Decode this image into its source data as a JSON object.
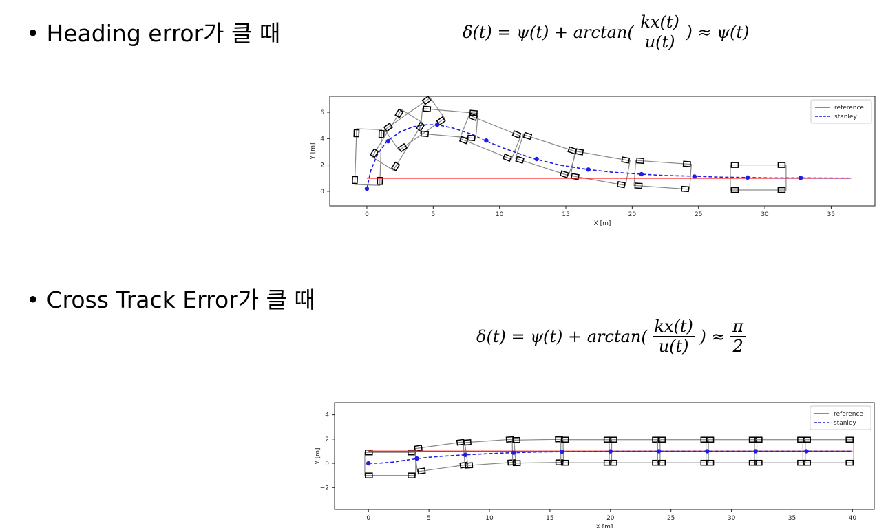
{
  "sections": [
    {
      "heading": "Heading error가 클 때",
      "formula": {
        "lhs": "δ(t) = ψ(t) + arctan(",
        "num": "kx(t)",
        "den": "u(t)",
        "rhs": ") ≈ ψ(t)"
      }
    },
    {
      "heading": "Cross Track Error가 클 때",
      "formula": {
        "lhs": "δ(t) = ψ(t) + arctan(",
        "num": "kx(t)",
        "den": "u(t)",
        "rhs_prefix": ") ≈",
        "rhs_num": "π",
        "rhs_den": "2"
      }
    }
  ],
  "chart_data": [
    {
      "type": "line",
      "xlabel": "X [m]",
      "ylabel": "Y [m]",
      "xlim": [
        -2.8,
        38.3
      ],
      "ylim": [
        -1.1,
        7.2
      ],
      "xticks": [
        "0",
        "5",
        "10",
        "15",
        "20",
        "25",
        "30",
        "35"
      ],
      "xtick_values": [
        0,
        5,
        10,
        15,
        20,
        25,
        30,
        35
      ],
      "yticks": [
        "0",
        "2",
        "4",
        "6"
      ],
      "ytick_values": [
        0,
        2,
        4,
        6
      ],
      "legend": {
        "position": "top-right",
        "entries": [
          "reference",
          "stanley"
        ]
      },
      "series": [
        {
          "name": "reference",
          "color": "#ff2020",
          "style": "solid",
          "x": [
            0,
            36.5
          ],
          "y": [
            1,
            1
          ]
        },
        {
          "name": "stanley",
          "color": "#1e1ee6",
          "style": "dashed",
          "x": [
            0,
            0.3,
            0.8,
            1.5,
            2.5,
            3.5,
            4.5,
            5.3,
            6.5,
            8,
            9,
            10.5,
            12.5,
            14.5,
            16.7,
            18.5,
            20.7,
            22.5,
            24.7,
            26.5,
            28.7,
            30.5,
            32.7,
            36.5
          ],
          "y": [
            0.2,
            1.6,
            2.8,
            3.8,
            4.5,
            4.9,
            5.05,
            5.05,
            4.8,
            4.3,
            3.8,
            3.2,
            2.5,
            2.0,
            1.65,
            1.45,
            1.3,
            1.2,
            1.15,
            1.08,
            1.05,
            1.02,
            1.02,
            1.0
          ]
        }
      ],
      "markers": {
        "x": [
          0,
          1.6,
          5.3,
          9.0,
          12.8,
          16.7,
          20.7,
          24.7,
          28.7,
          32.7
        ],
        "y": [
          0.2,
          3.8,
          5.05,
          3.85,
          2.45,
          1.65,
          1.3,
          1.12,
          1.05,
          1.02
        ]
      },
      "vehicle_outlines": [
        {
          "cx": 0.1,
          "cy": 2.6,
          "heading": 88
        },
        {
          "cx": 2.3,
          "cy": 3.9,
          "heading": 58
        },
        {
          "cx": 3.6,
          "cy": 5.1,
          "heading": 35
        },
        {
          "cx": 6.2,
          "cy": 5.15,
          "heading": -5
        },
        {
          "cx": 9.3,
          "cy": 4.1,
          "heading": -22
        },
        {
          "cx": 13.5,
          "cy": 2.75,
          "heading": -18
        },
        {
          "cx": 17.6,
          "cy": 1.75,
          "heading": -10
        },
        {
          "cx": 22.3,
          "cy": 1.25,
          "heading": -4
        },
        {
          "cx": 29.5,
          "cy": 1.05,
          "heading": 0
        }
      ]
    },
    {
      "type": "line",
      "xlabel": "X [m]",
      "ylabel": "Y [m]",
      "xlim": [
        -2.8,
        41.8
      ],
      "ylim": [
        -3.8,
        5.0
      ],
      "xticks": [
        "0",
        "5",
        "10",
        "15",
        "20",
        "25",
        "30",
        "35",
        "40"
      ],
      "xtick_values": [
        0,
        5,
        10,
        15,
        20,
        25,
        30,
        35,
        40
      ],
      "yticks": [
        "4",
        "2",
        "0",
        "−2"
      ],
      "ytick_values": [
        4,
        2,
        0,
        -2
      ],
      "legend": {
        "position": "top-right",
        "entries": [
          "reference",
          "stanley"
        ]
      },
      "series": [
        {
          "name": "reference",
          "color": "#ff2020",
          "style": "solid",
          "x": [
            0,
            40
          ],
          "y": [
            1,
            1
          ]
        },
        {
          "name": "stanley",
          "color": "#1e1ee6",
          "style": "dashed",
          "x": [
            0,
            1,
            2,
            3,
            4,
            5,
            6,
            8,
            10,
            12,
            14,
            16,
            20,
            24,
            28,
            32,
            36,
            40
          ],
          "y": [
            0,
            0.02,
            0.1,
            0.25,
            0.38,
            0.5,
            0.58,
            0.7,
            0.8,
            0.88,
            0.93,
            0.96,
            0.99,
            1.0,
            1.0,
            1.0,
            1.0,
            1.0
          ]
        }
      ],
      "markers": {
        "x": [
          0,
          4,
          8,
          12,
          16,
          20,
          24,
          28,
          32,
          36.2
        ],
        "y": [
          0,
          0.4,
          0.7,
          0.88,
          0.96,
          0.99,
          1.0,
          1.0,
          1.0,
          1.0
        ]
      },
      "vehicle_outlines": [
        {
          "cx": 1.8,
          "cy": -0.05,
          "heading": 0
        },
        {
          "cx": 6.0,
          "cy": 0.55,
          "heading": 8
        },
        {
          "cx": 10.0,
          "cy": 0.9,
          "heading": 4
        },
        {
          "cx": 14.0,
          "cy": 1.0,
          "heading": 1
        },
        {
          "cx": 18.0,
          "cy": 1.0,
          "heading": 0
        },
        {
          "cx": 22.0,
          "cy": 1.0,
          "heading": 0
        },
        {
          "cx": 26.0,
          "cy": 1.0,
          "heading": 0
        },
        {
          "cx": 30.0,
          "cy": 1.0,
          "heading": 0
        },
        {
          "cx": 34.0,
          "cy": 1.0,
          "heading": 0
        },
        {
          "cx": 38.0,
          "cy": 1.0,
          "heading": 0
        }
      ]
    }
  ]
}
